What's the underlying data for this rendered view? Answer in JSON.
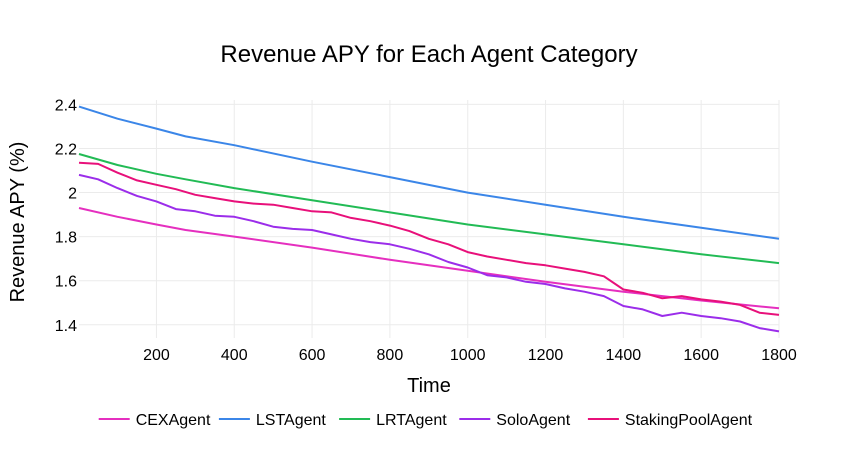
{
  "chart_data": {
    "type": "line",
    "title": "Revenue APY for Each Agent Category",
    "xlabel": "Time",
    "ylabel": "Revenue APY (%)",
    "xlim": [
      1,
      1800
    ],
    "ylim": [
      1.34,
      2.42
    ],
    "x_ticks": [
      200,
      400,
      600,
      800,
      1000,
      1200,
      1400,
      1600,
      1800
    ],
    "x_tick_labels": [
      "200",
      "400",
      "600",
      "800",
      "1000",
      "1200",
      "1400",
      "1600",
      "1800"
    ],
    "y_ticks": [
      1.4,
      1.6,
      1.8,
      2.0,
      2.2,
      2.4
    ],
    "y_tick_labels": [
      "1.4",
      "1.6",
      "1.8",
      "2",
      "2.2",
      "2.4"
    ],
    "grid": true,
    "legend_position": "bottom",
    "series": [
      {
        "name": "CEXAgent",
        "color": "#e52fbf",
        "x": [
          1,
          100,
          200,
          275,
          400,
          600,
          800,
          1000,
          1200,
          1400,
          1600,
          1800
        ],
        "y": [
          1.93,
          1.89,
          1.855,
          1.83,
          1.8,
          1.75,
          1.695,
          1.645,
          1.595,
          1.55,
          1.51,
          1.475
        ]
      },
      {
        "name": "LSTAgent",
        "color": "#3b86e8",
        "x": [
          1,
          100,
          200,
          275,
          400,
          600,
          800,
          1000,
          1200,
          1400,
          1600,
          1800
        ],
        "y": [
          2.39,
          2.335,
          2.29,
          2.255,
          2.215,
          2.14,
          2.07,
          2.0,
          1.945,
          1.89,
          1.84,
          1.79
        ]
      },
      {
        "name": "LRTAgent",
        "color": "#22bb55",
        "x": [
          1,
          100,
          200,
          275,
          400,
          600,
          800,
          1000,
          1200,
          1400,
          1600,
          1800
        ],
        "y": [
          2.175,
          2.125,
          2.085,
          2.06,
          2.02,
          1.965,
          1.91,
          1.855,
          1.81,
          1.765,
          1.72,
          1.68
        ]
      },
      {
        "name": "SoloAgent",
        "color": "#9b2dea",
        "x": [
          1,
          50,
          100,
          150,
          200,
          250,
          300,
          350,
          400,
          450,
          500,
          550,
          600,
          650,
          700,
          750,
          800,
          850,
          900,
          950,
          1000,
          1050,
          1100,
          1150,
          1200,
          1250,
          1300,
          1350,
          1400,
          1450,
          1500,
          1550,
          1600,
          1650,
          1700,
          1750,
          1800
        ],
        "y": [
          2.08,
          2.06,
          2.02,
          1.985,
          1.96,
          1.925,
          1.915,
          1.895,
          1.89,
          1.87,
          1.845,
          1.835,
          1.83,
          1.81,
          1.79,
          1.775,
          1.765,
          1.745,
          1.72,
          1.685,
          1.66,
          1.625,
          1.615,
          1.595,
          1.585,
          1.565,
          1.55,
          1.53,
          1.485,
          1.47,
          1.44,
          1.455,
          1.44,
          1.43,
          1.415,
          1.385,
          1.37
        ]
      },
      {
        "name": "StakingPoolAgent",
        "color": "#e8107a",
        "x": [
          1,
          50,
          100,
          150,
          200,
          250,
          300,
          350,
          400,
          450,
          500,
          550,
          600,
          650,
          700,
          750,
          800,
          850,
          900,
          950,
          1000,
          1050,
          1100,
          1150,
          1200,
          1250,
          1300,
          1350,
          1400,
          1450,
          1500,
          1550,
          1600,
          1650,
          1700,
          1750,
          1800
        ],
        "y": [
          2.135,
          2.13,
          2.09,
          2.055,
          2.035,
          2.015,
          1.99,
          1.975,
          1.96,
          1.95,
          1.945,
          1.93,
          1.915,
          1.91,
          1.885,
          1.87,
          1.85,
          1.825,
          1.79,
          1.765,
          1.73,
          1.71,
          1.695,
          1.68,
          1.67,
          1.655,
          1.64,
          1.62,
          1.56,
          1.545,
          1.52,
          1.53,
          1.515,
          1.505,
          1.49,
          1.455,
          1.445
        ]
      }
    ]
  }
}
